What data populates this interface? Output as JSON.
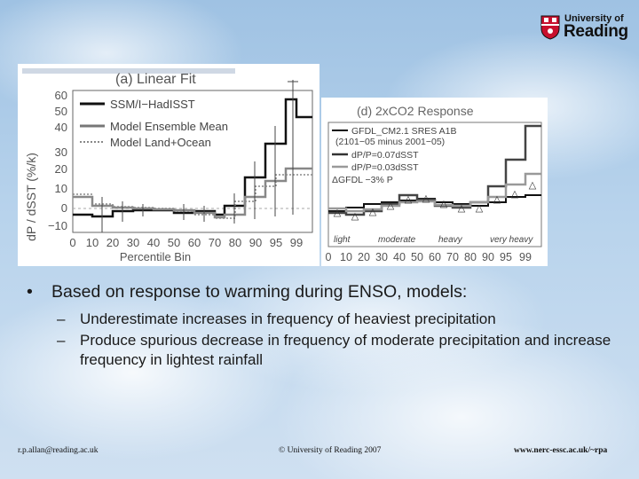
{
  "logo": {
    "top": "University of",
    "main": "Reading"
  },
  "panel_a": {
    "title": "(a)  Linear  Fit",
    "y_label": "dP / dSST (%/k)",
    "x_label": "Percentile Bin",
    "y_ticks": [
      "60",
      "50",
      "40",
      "30",
      "20",
      "10",
      "0",
      "−10"
    ],
    "x_ticks": [
      "0",
      "10",
      "20",
      "30",
      "40",
      "50",
      "60",
      "70",
      "80",
      "90",
      "95",
      "99"
    ],
    "legend": [
      "SSM/I−HadISST",
      "Model Ensemble Mean",
      "Model Land+Ocean"
    ]
  },
  "panel_d": {
    "title": "(d)  2xCO2  Response",
    "legend": [
      "GFDL_CM2.1 SRES A1B",
      "(2101−05 minus 2001−05)",
      "dP/P=0.07dSST",
      "dP/P=0.03dSST",
      "ΔGFDL −3% P"
    ],
    "x_ticks": [
      "0",
      "10",
      "20",
      "30",
      "40",
      "50",
      "60",
      "70",
      "80",
      "90",
      "95",
      "99"
    ],
    "bins": [
      "light",
      "moderate",
      "heavy",
      "very heavy"
    ]
  },
  "bullets": {
    "main": "Based on response to warming during ENSO, models:",
    "subs": [
      "Underestimate increases in frequency of heaviest precipitation",
      "Produce spurious decrease in frequency of moderate precipitation and increase frequency in lightest rainfall"
    ]
  },
  "footer": {
    "left": "r.p.allan@reading.ac.uk",
    "middle": "© University of Reading 2007",
    "right": "www.nerc-essc.ac.uk/~rpa"
  }
}
